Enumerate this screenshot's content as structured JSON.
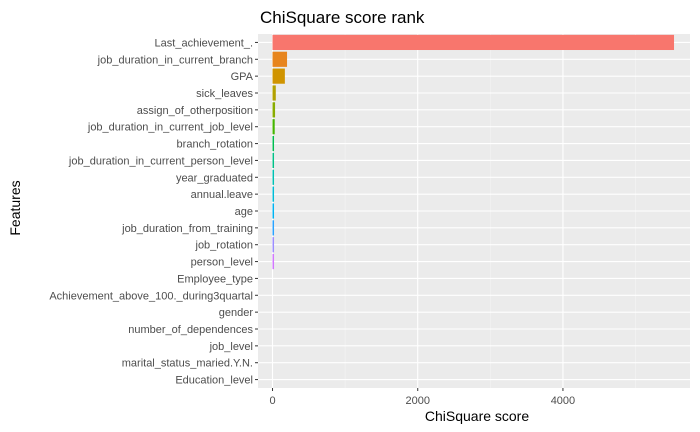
{
  "chart_data": {
    "type": "bar",
    "orientation": "horizontal",
    "title": "ChiSquare score rank",
    "xlabel": "ChiSquare score",
    "ylabel": "Features",
    "xlim": [
      -200,
      5750
    ],
    "xticks": [
      0,
      2000,
      4000
    ],
    "grid": true,
    "legend": "none",
    "categories": [
      "Last_achievement_.",
      "job_duration_in_current_branch",
      "GPA",
      "sick_leaves",
      "assign_of_otherposition",
      "job_duration_in_current_job_level",
      "branch_rotation",
      "job_duration_in_current_person_level",
      "year_graduated",
      "annual.leave",
      "age",
      "job_duration_from_training",
      "job_rotation",
      "person_level",
      "Employee_type",
      "Achievement_above_100._during3quartal",
      "gender",
      "number_of_dependences",
      "job_level",
      "marital_status_maried.Y.N.",
      "Education_level"
    ],
    "values": [
      5530,
      200,
      170,
      45,
      35,
      30,
      20,
      18,
      15,
      12,
      10,
      8,
      6,
      4,
      0,
      0,
      0,
      0,
      0,
      0,
      0
    ],
    "colors": [
      "#F8766D",
      "#E7851E",
      "#D09400",
      "#B2A100",
      "#89AC00",
      "#45B500",
      "#00BC51",
      "#00C087",
      "#00C0B2",
      "#00BCD6",
      "#00B3F2",
      "#29A3FF",
      "#9C8DFF",
      "#D277FF",
      "#F166E8",
      "#FF61C7",
      "#FF6C91",
      "#FF7A70",
      "#E0884A",
      "#C69A00",
      "#AAA400"
    ]
  }
}
